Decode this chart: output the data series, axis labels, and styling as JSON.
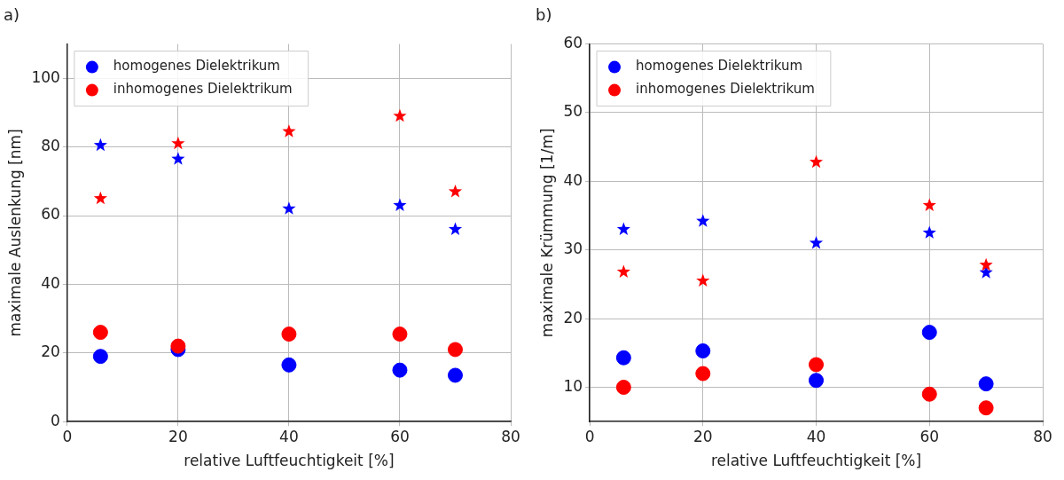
{
  "chart_data": [
    {
      "type": "scatter",
      "title": "a)",
      "xlabel": "relative Luftfeuchtigkeit [%]",
      "ylabel": "maximale Auslenkung [nm]",
      "x": [
        6,
        20,
        40,
        60,
        70
      ],
      "xlim": [
        0,
        80
      ],
      "xticks": [
        0,
        20,
        40,
        60,
        80
      ],
      "ylim": [
        0,
        110
      ],
      "yticks": [
        0,
        20,
        40,
        60,
        80,
        100
      ],
      "grid": true,
      "legend": "top left",
      "series": [
        {
          "name": "homogenes Dielektrikum",
          "color": "#0000ff",
          "marker": "circle",
          "values": [
            19,
            21,
            16.5,
            15,
            13.5
          ]
        },
        {
          "name": "inhomogenes Dielektrikum",
          "color": "#ff0000",
          "marker": "circle",
          "values": [
            26,
            22,
            25.5,
            25.5,
            21
          ]
        },
        {
          "color": "#0000ff",
          "marker": "star",
          "values": [
            80.5,
            76.5,
            62,
            63,
            56
          ]
        },
        {
          "color": "#ff0000",
          "marker": "star",
          "values": [
            65,
            81,
            84.5,
            89,
            67
          ]
        }
      ]
    },
    {
      "type": "scatter",
      "title": "b)",
      "xlabel": "relative Luftfeuchtigkeit [%]",
      "ylabel": "maximale Krümmung [1/m]",
      "x": [
        6,
        20,
        40,
        60,
        70
      ],
      "xlim": [
        0,
        80
      ],
      "xticks": [
        0,
        20,
        40,
        60,
        80
      ],
      "ylim": [
        5,
        60
      ],
      "yticks": [
        10,
        20,
        30,
        40,
        50,
        60
      ],
      "grid": true,
      "legend": "top left",
      "series": [
        {
          "name": "homogenes Dielektrikum",
          "color": "#0000ff",
          "marker": "circle",
          "values": [
            14.3,
            15.3,
            11,
            18,
            10.5
          ]
        },
        {
          "name": "inhomogenes Dielektrikum",
          "color": "#ff0000",
          "marker": "circle",
          "values": [
            10,
            12,
            13.3,
            9,
            7
          ]
        },
        {
          "color": "#0000ff",
          "marker": "star",
          "values": [
            33,
            34.2,
            31,
            32.5,
            26.7
          ]
        },
        {
          "color": "#ff0000",
          "marker": "star",
          "values": [
            26.8,
            25.5,
            42.8,
            36.5,
            27.8
          ]
        }
      ]
    }
  ]
}
